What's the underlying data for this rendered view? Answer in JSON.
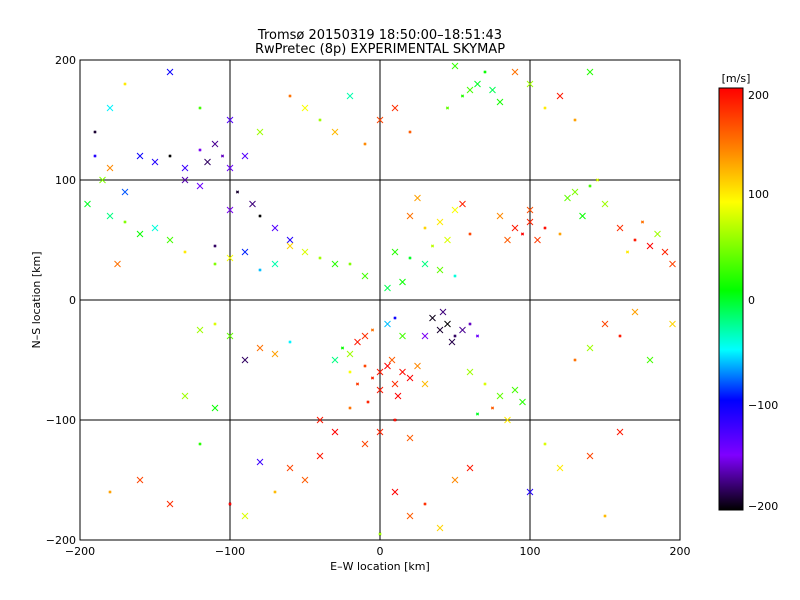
{
  "chart_data": {
    "type": "scatter",
    "title": "Tromsø 20150319 18:50:00–18:51:43",
    "subtitle": "RwPretec (8p) EXPERIMENTAL SKYMAP",
    "xlabel": "E–W location [km]",
    "ylabel": "N–S location [km]",
    "xlim": [
      -200,
      200
    ],
    "ylim": [
      -200,
      200
    ],
    "x_ticks": [
      "−200",
      "−100",
      "0",
      "100",
      "200"
    ],
    "y_ticks": [
      "−200",
      "−100",
      "0",
      "100",
      "200"
    ],
    "grid": true,
    "colorbar": {
      "unit": "[m/s]",
      "range": [
        -200,
        200
      ],
      "ticks": [
        "200",
        "100",
        "0",
        "−100",
        "−200"
      ],
      "colors": [
        "#000000",
        "#7f00ff",
        "#0000ff",
        "#00ffff",
        "#00ff00",
        "#ffff00",
        "#ff7f00",
        "#ff0000"
      ]
    },
    "series": [
      {
        "points": [
          [
            0,
            -60,
            190
          ],
          [
            5,
            -55,
            200
          ],
          [
            -5,
            -65,
            185
          ],
          [
            10,
            -70,
            180
          ],
          [
            15,
            -60,
            195
          ],
          [
            -10,
            -55,
            170
          ],
          [
            20,
            -65,
            200
          ],
          [
            0,
            -75,
            190
          ],
          [
            -15,
            -70,
            175
          ],
          [
            8,
            -50,
            160
          ],
          [
            25,
            -55,
            140
          ],
          [
            -20,
            -60,
            90
          ],
          [
            30,
            -70,
            120
          ],
          [
            12,
            -80,
            200
          ],
          [
            -8,
            -85,
            185
          ],
          [
            40,
            -25,
            -190
          ],
          [
            45,
            -20,
            -200
          ],
          [
            50,
            -30,
            -180
          ],
          [
            55,
            -25,
            -170
          ],
          [
            35,
            -15,
            -195
          ],
          [
            60,
            -20,
            -160
          ],
          [
            48,
            -35,
            -185
          ],
          [
            30,
            -30,
            -150
          ],
          [
            65,
            -30,
            -140
          ],
          [
            42,
            -10,
            -175
          ],
          [
            -10,
            -30,
            180
          ],
          [
            -5,
            -25,
            150
          ],
          [
            -15,
            -35,
            190
          ],
          [
            -20,
            -45,
            60
          ],
          [
            -25,
            -40,
            10
          ],
          [
            -30,
            -50,
            -20
          ],
          [
            5,
            -20,
            -60
          ],
          [
            10,
            -15,
            -100
          ],
          [
            15,
            -30,
            30
          ],
          [
            90,
            60,
            190
          ],
          [
            95,
            55,
            200
          ],
          [
            100,
            65,
            185
          ],
          [
            105,
            50,
            175
          ],
          [
            110,
            60,
            195
          ],
          [
            85,
            50,
            160
          ],
          [
            80,
            70,
            140
          ],
          [
            120,
            55,
            130
          ],
          [
            100,
            75,
            165
          ],
          [
            20,
            70,
            150
          ],
          [
            30,
            60,
            110
          ],
          [
            40,
            65,
            100
          ],
          [
            50,
            75,
            90
          ],
          [
            60,
            55,
            170
          ],
          [
            25,
            85,
            130
          ],
          [
            45,
            50,
            80
          ],
          [
            35,
            45,
            70
          ],
          [
            55,
            80,
            185
          ],
          [
            10,
            40,
            20
          ],
          [
            20,
            35,
            0
          ],
          [
            30,
            30,
            -20
          ],
          [
            40,
            25,
            40
          ],
          [
            50,
            20,
            -40
          ],
          [
            15,
            15,
            10
          ],
          [
            -10,
            20,
            30
          ],
          [
            -20,
            30,
            50
          ],
          [
            5,
            10,
            -10
          ],
          [
            -110,
            130,
            -170
          ],
          [
            -105,
            120,
            -160
          ],
          [
            -115,
            115,
            -180
          ],
          [
            -100,
            110,
            -140
          ],
          [
            -120,
            125,
            -150
          ],
          [
            -90,
            120,
            -130
          ],
          [
            -130,
            110,
            -120
          ],
          [
            -140,
            120,
            -200
          ],
          [
            -150,
            115,
            -110
          ],
          [
            -160,
            120,
            -100
          ],
          [
            -95,
            90,
            -190
          ],
          [
            -85,
            80,
            -175
          ],
          [
            -100,
            75,
            -150
          ],
          [
            -80,
            70,
            -200
          ],
          [
            -70,
            60,
            -130
          ],
          [
            -60,
            50,
            -110
          ],
          [
            -110,
            45,
            -180
          ],
          [
            -130,
            100,
            -165
          ],
          [
            -120,
            95,
            -140
          ],
          [
            55,
            170,
            20
          ],
          [
            60,
            175,
            30
          ],
          [
            65,
            180,
            0
          ],
          [
            70,
            190,
            10
          ],
          [
            50,
            195,
            25
          ],
          [
            75,
            175,
            -10
          ],
          [
            45,
            160,
            40
          ],
          [
            80,
            165,
            15
          ],
          [
            130,
            90,
            50
          ],
          [
            140,
            95,
            30
          ],
          [
            150,
            80,
            60
          ],
          [
            135,
            70,
            10
          ],
          [
            145,
            100,
            80
          ],
          [
            125,
            85,
            40
          ],
          [
            160,
            60,
            180
          ],
          [
            170,
            50,
            190
          ],
          [
            180,
            45,
            200
          ],
          [
            190,
            40,
            185
          ],
          [
            175,
            65,
            150
          ],
          [
            185,
            55,
            60
          ],
          [
            195,
            30,
            170
          ],
          [
            165,
            40,
            100
          ],
          [
            -60,
            45,
            110
          ],
          [
            -50,
            40,
            80
          ],
          [
            -40,
            35,
            60
          ],
          [
            -30,
            30,
            20
          ],
          [
            -70,
            30,
            -30
          ],
          [
            -80,
            25,
            -60
          ],
          [
            -90,
            40,
            -90
          ],
          [
            -100,
            35,
            90
          ],
          [
            -110,
            30,
            50
          ],
          [
            -150,
            60,
            -40
          ],
          [
            -160,
            55,
            10
          ],
          [
            -170,
            65,
            50
          ],
          [
            -180,
            70,
            -20
          ],
          [
            -140,
            50,
            30
          ],
          [
            -130,
            40,
            100
          ],
          [
            -175,
            30,
            150
          ],
          [
            -50,
            160,
            90
          ],
          [
            -40,
            150,
            60
          ],
          [
            -30,
            140,
            120
          ],
          [
            -20,
            170,
            -30
          ],
          [
            -10,
            130,
            140
          ],
          [
            0,
            150,
            170
          ],
          [
            10,
            160,
            180
          ],
          [
            20,
            140,
            160
          ],
          [
            -80,
            -40,
            150
          ],
          [
            -70,
            -45,
            130
          ],
          [
            -60,
            -35,
            -50
          ],
          [
            -90,
            -50,
            -180
          ],
          [
            -100,
            -30,
            40
          ],
          [
            -110,
            -20,
            80
          ],
          [
            -120,
            -25,
            60
          ],
          [
            60,
            -60,
            60
          ],
          [
            70,
            -70,
            80
          ],
          [
            80,
            -80,
            40
          ],
          [
            90,
            -75,
            30
          ],
          [
            75,
            -90,
            160
          ],
          [
            85,
            -100,
            100
          ],
          [
            95,
            -85,
            20
          ],
          [
            65,
            -95,
            0
          ],
          [
            -40,
            -100,
            190
          ],
          [
            -30,
            -110,
            200
          ],
          [
            -20,
            -90,
            150
          ],
          [
            -10,
            -120,
            170
          ],
          [
            0,
            -110,
            185
          ],
          [
            10,
            -100,
            195
          ],
          [
            20,
            -115,
            160
          ],
          [
            150,
            -20,
            170
          ],
          [
            160,
            -30,
            190
          ],
          [
            140,
            -40,
            60
          ],
          [
            170,
            -10,
            130
          ],
          [
            130,
            -50,
            150
          ],
          [
            180,
            -50,
            30
          ],
          [
            195,
            -20,
            110
          ],
          [
            -170,
            180,
            100
          ],
          [
            -180,
            160,
            -50
          ],
          [
            -140,
            190,
            -100
          ],
          [
            -120,
            160,
            30
          ],
          [
            -100,
            150,
            -130
          ],
          [
            -80,
            140,
            60
          ],
          [
            -60,
            170,
            150
          ],
          [
            -60,
            -140,
            170
          ],
          [
            -50,
            -150,
            160
          ],
          [
            -70,
            -160,
            120
          ],
          [
            -40,
            -130,
            190
          ],
          [
            -80,
            -135,
            -120
          ],
          [
            -100,
            -170,
            200
          ],
          [
            -90,
            -180,
            80
          ],
          [
            20,
            -180,
            160
          ],
          [
            30,
            -170,
            180
          ],
          [
            40,
            -190,
            110
          ],
          [
            10,
            -160,
            200
          ],
          [
            0,
            -195,
            60
          ],
          [
            50,
            -150,
            140
          ],
          [
            60,
            -140,
            190
          ],
          [
            110,
            -120,
            80
          ],
          [
            120,
            -140,
            100
          ],
          [
            100,
            -160,
            -110
          ],
          [
            150,
            -180,
            120
          ],
          [
            140,
            -130,
            170
          ],
          [
            160,
            -110,
            190
          ],
          [
            -180,
            -160,
            130
          ],
          [
            -160,
            -150,
            170
          ],
          [
            -140,
            -170,
            180
          ],
          [
            -120,
            -120,
            20
          ],
          [
            -110,
            -90,
            10
          ],
          [
            -130,
            -80,
            60
          ],
          [
            110,
            160,
            100
          ],
          [
            120,
            170,
            190
          ],
          [
            100,
            180,
            60
          ],
          [
            130,
            150,
            130
          ],
          [
            140,
            190,
            20
          ],
          [
            90,
            190,
            150
          ],
          [
            -190,
            120,
            -110
          ],
          [
            -185,
            100,
            50
          ],
          [
            -195,
            80,
            0
          ],
          [
            -190,
            140,
            -190
          ],
          [
            -180,
            110,
            140
          ],
          [
            -170,
            90,
            -80
          ]
        ]
      }
    ]
  }
}
